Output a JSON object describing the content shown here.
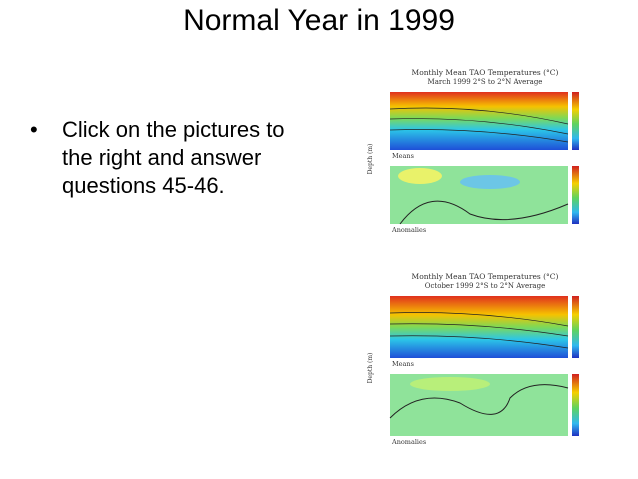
{
  "title": "Normal Year in 1999",
  "bullets": [
    "Click on the pictures to the right and answer questions 45-46."
  ],
  "pictures": [
    {
      "title": "Monthly Mean TAO Temperatures (°C)",
      "subtitle": "March 1999   2°S to 2°N Average",
      "y_label": "Depth (m)",
      "panels": [
        "Means",
        "Anomalies"
      ]
    },
    {
      "title": "Monthly Mean TAO Temperatures (°C)",
      "subtitle": "October 1999   2°S to 2°N Average",
      "y_label": "Depth (m)",
      "panels": [
        "Means",
        "Anomalies"
      ]
    }
  ]
}
